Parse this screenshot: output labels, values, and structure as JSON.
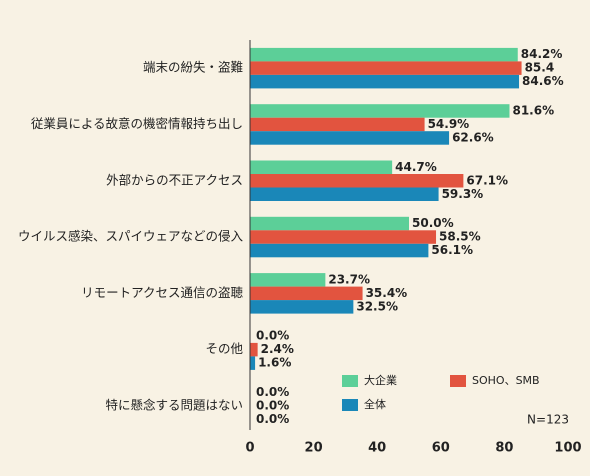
{
  "chart_data": {
    "type": "bar",
    "orientation": "horizontal",
    "categories": [
      "端末の紛失・盗難",
      "従業員による故意の機密情報持ち出し",
      "外部からの不正アクセス",
      "ウイルス感染、スパイウェアなどの侵入",
      "リモートアクセス通信の盗聴",
      "その他",
      "特に懸念する問題はない"
    ],
    "series": [
      {
        "name": "大企業",
        "color": "#5ccf98",
        "label_color": "#2f9a68",
        "values": [
          84.2,
          81.6,
          44.7,
          50.0,
          23.7,
          0.0,
          0.0
        ],
        "value_labels": [
          "84.2%",
          "81.6%",
          "44.7%",
          "50.0%",
          "23.7%",
          "0.0%",
          "0.0%"
        ]
      },
      {
        "name": "SOHO、SMB",
        "color": "#e2543f",
        "label_color": "#d9472f",
        "values": [
          85.4,
          54.9,
          67.1,
          58.5,
          35.4,
          2.4,
          0.0
        ],
        "value_labels": [
          "85.4",
          "54.9%",
          "67.1%",
          "58.5%",
          "35.4%",
          "2.4%",
          "0.0%"
        ]
      },
      {
        "name": "全体",
        "color": "#1a87b8",
        "label_color": "#1a7fb0",
        "values": [
          84.6,
          62.6,
          59.3,
          56.1,
          32.5,
          1.6,
          0.0
        ],
        "value_labels": [
          "84.6%",
          "62.6%",
          "59.3%",
          "56.1%",
          "32.5%",
          "1.6%",
          "0.0%"
        ]
      }
    ],
    "xlim": [
      0,
      100
    ],
    "xticks": [
      0,
      20,
      40,
      60,
      80,
      100
    ],
    "grid": false,
    "note": "N=123"
  }
}
